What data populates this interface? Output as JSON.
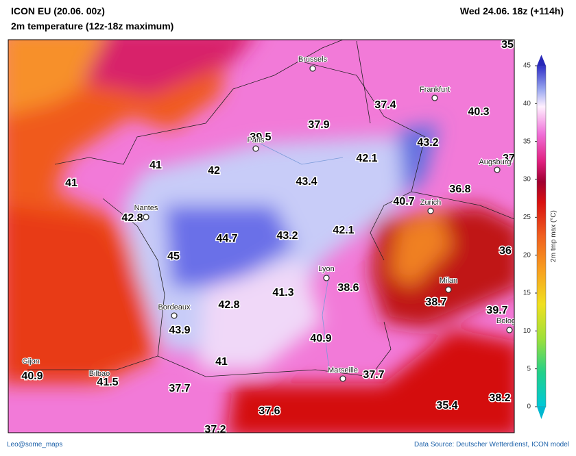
{
  "header": {
    "model": "ICON EU (20.06. 00z)",
    "parameter": "2m temperature (12z-18z maximum)",
    "valid": "Wed 24.06. 18z (+114h)"
  },
  "map": {
    "values": [
      35,
      37.4,
      40.3,
      37.9,
      39.5,
      43.2,
      37,
      41,
      42,
      42.1,
      43.4,
      41,
      36.8,
      40.7,
      42.8,
      44.7,
      43.2,
      42.1,
      36,
      45,
      41.3,
      38.6,
      38.7,
      39.7,
      42.8,
      43.9,
      40.9,
      41,
      40.9,
      41.5,
      37.7,
      37.7,
      37.6,
      35.4,
      38.2,
      37.2
    ],
    "cities": [
      "Brussels",
      "Frankfurt",
      "Paris",
      "Augsburg",
      "Zurich",
      "Nantes",
      "Lyon",
      "Milan",
      "Bordeaux",
      "Bolog",
      "Marseille",
      "Gijon",
      "Bilbao"
    ]
  },
  "colorbar": {
    "label": "2m tmp max (°C)",
    "ticks": [
      0,
      5,
      10,
      15,
      20,
      25,
      30,
      35,
      40,
      45
    ]
  },
  "footer": {
    "credit": "Leo@some_maps",
    "source": "Data Source: Deutscher Wetterdienst, ICON model"
  }
}
